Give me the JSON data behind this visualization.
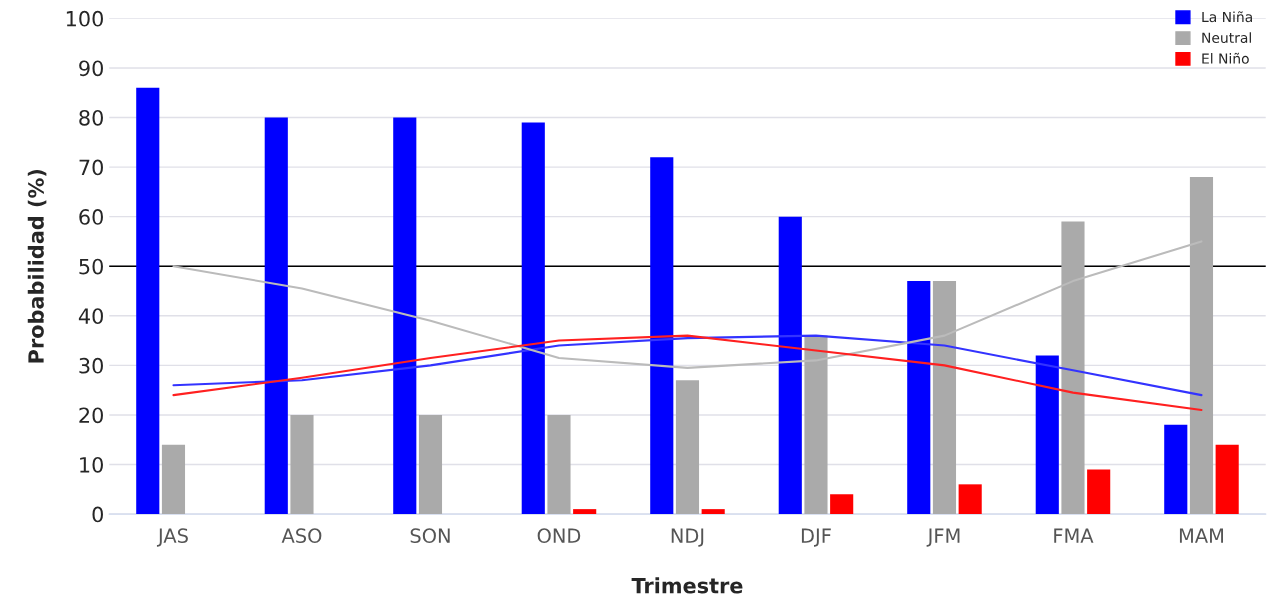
{
  "chart_data": {
    "type": "bar",
    "xlabel": "Trimestre",
    "ylabel": "Probabilidad (%)",
    "categories": [
      "JAS",
      "ASO",
      "SON",
      "OND",
      "NDJ",
      "DJF",
      "JFM",
      "FMA",
      "MAM"
    ],
    "series": [
      {
        "name": "La Niña",
        "color": "#0000ff",
        "values": [
          86,
          80,
          80,
          79,
          72,
          60,
          47,
          32,
          18
        ]
      },
      {
        "name": "Neutral",
        "color": "#aaaaaa",
        "values": [
          14,
          20,
          20,
          20,
          27,
          36,
          47,
          59,
          68
        ]
      },
      {
        "name": "El Niño",
        "color": "#ff0000",
        "values": [
          0,
          0,
          0,
          1,
          1,
          4,
          6,
          9,
          14
        ]
      },
      {
        "type": "line",
        "color": "#3333ff",
        "values": [
          26,
          27,
          30,
          34,
          35.5,
          36,
          34,
          29,
          24
        ]
      },
      {
        "type": "line",
        "color": "#bbbbbb",
        "values": [
          50,
          45.5,
          39,
          31.5,
          29.5,
          31,
          36,
          47,
          55
        ]
      },
      {
        "type": "line",
        "color": "#ff2020",
        "values": [
          24,
          27.5,
          31.5,
          35,
          36,
          33,
          30,
          24.5,
          21
        ]
      }
    ],
    "ylim": [
      0,
      100
    ],
    "yticks": [
      0,
      10,
      20,
      30,
      40,
      50,
      60,
      70,
      80,
      90,
      100
    ],
    "grid": "y",
    "legend": "top right",
    "ref_lines": [
      {
        "axis": "y",
        "value": 50,
        "color": "#000000"
      }
    ]
  }
}
